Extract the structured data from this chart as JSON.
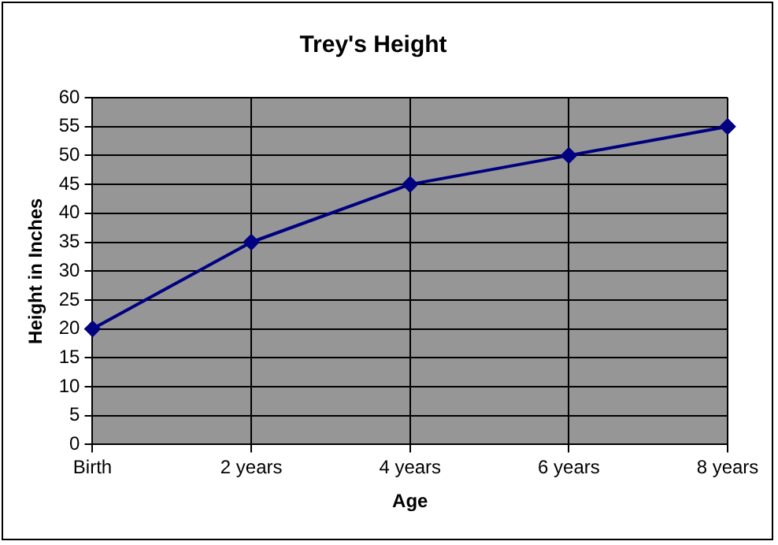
{
  "chart_data": {
    "type": "line",
    "title": "Trey's Height",
    "xlabel": "Age",
    "ylabel": "Height in Inches",
    "categories": [
      "Birth",
      "2 years",
      "4 years",
      "6 years",
      "8 years"
    ],
    "series": [
      {
        "color": "#000080",
        "values": [
          20,
          35,
          45,
          50,
          55
        ]
      }
    ],
    "ylim": [
      0,
      60
    ],
    "yticks": [
      0,
      5,
      10,
      15,
      20,
      25,
      30,
      35,
      40,
      45,
      50,
      55,
      60
    ],
    "grid": true,
    "legend": false,
    "marker": "diamond",
    "line_style": "solid"
  }
}
